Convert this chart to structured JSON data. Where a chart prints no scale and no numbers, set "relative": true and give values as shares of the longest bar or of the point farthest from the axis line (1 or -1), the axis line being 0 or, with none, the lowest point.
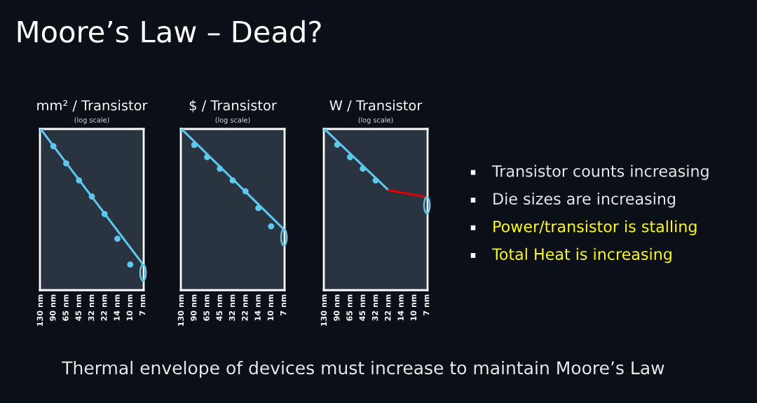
{
  "chart_data": [
    {
      "type": "scatter",
      "title": "mm² / Transistor",
      "subtitle": "(log scale)",
      "relative": true,
      "categories": [
        "130 nm",
        "90 nm",
        "65 nm",
        "45 nm",
        "32 nm",
        "22 nm",
        "14 nm",
        "10 nm",
        "7 nm"
      ],
      "series": [
        {
          "type": "scatter",
          "color": "#5bc8f0",
          "values": [
            1,
            0.893,
            0.786,
            0.681,
            0.581,
            0.472,
            0.319,
            0.159,
            null
          ]
        },
        {
          "type": "line",
          "color": "#5bc8f0",
          "values": [
            1,
            null,
            null,
            null,
            null,
            null,
            null,
            null,
            0.159
          ]
        }
      ]
    },
    {
      "type": "scatter",
      "title": "$ / Transistor",
      "subtitle": "(log scale)",
      "relative": true,
      "categories": [
        "130 nm",
        "90 nm",
        "65 nm",
        "45 nm",
        "32 nm",
        "22 nm",
        "14 nm",
        "10 nm",
        "7 nm"
      ],
      "series": [
        {
          "type": "scatter",
          "color": "#5bc8f0",
          "values": [
            1,
            0.901,
            0.826,
            0.754,
            0.681,
            0.613,
            0.509,
            0.396,
            null
          ]
        },
        {
          "type": "line",
          "color": "#5bc8f0",
          "values": [
            1,
            null,
            null,
            null,
            null,
            null,
            null,
            null,
            0.377
          ]
        }
      ]
    },
    {
      "type": "scatter",
      "title": "W / Transistor",
      "subtitle": "(log scale)",
      "relative": true,
      "categories": [
        "130 nm",
        "90 nm",
        "65 nm",
        "45 nm",
        "32 nm",
        "22 nm",
        "14 nm",
        "10 nm",
        "7 nm"
      ],
      "series": [
        {
          "type": "scatter",
          "color": "#5bc8f0",
          "values": [
            1,
            0.903,
            0.826,
            0.754,
            0.681,
            null,
            null,
            null,
            null
          ]
        },
        {
          "type": "line",
          "color": "#5bc8f0",
          "values": [
            1,
            null,
            null,
            null,
            null,
            0.62,
            null,
            null,
            null
          ]
        },
        {
          "type": "line",
          "color": "#e00000",
          "values": [
            null,
            null,
            null,
            null,
            null,
            0.62,
            null,
            null,
            0.577
          ]
        }
      ]
    },
    {
      "type": "other",
      "title": "Moore’s Law – Dead?",
      "annotations": [
        "Transistor counts increasing",
        "Die sizes are increasing",
        "Power/transistor is stalling",
        "Total Heat is increasing",
        "Thermal envelope of devices must increase to maintain Moore’s Law"
      ]
    }
  ]
}
